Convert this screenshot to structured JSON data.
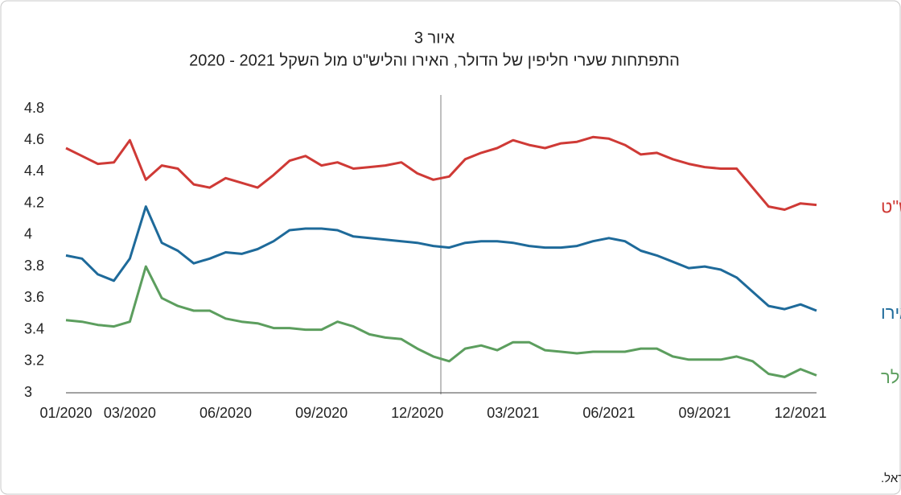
{
  "chart_data": {
    "type": "line",
    "title": "איור 3",
    "subtitle": "התפתחות שערי חליפין של הדולר, האירו והליש\"ט מול השקל  2021 - 2020",
    "source": "המקור: בנק ישראל.",
    "categories": [
      "01/2020",
      null,
      null,
      null,
      "03/2020",
      null,
      null,
      null,
      null,
      null,
      "06/2020",
      null,
      null,
      null,
      null,
      null,
      "09/2020",
      null,
      null,
      null,
      null,
      null,
      "12/2020",
      null,
      null,
      null,
      null,
      null,
      "03/2021",
      null,
      null,
      null,
      null,
      null,
      "06/2021",
      null,
      null,
      null,
      null,
      null,
      "09/2021",
      null,
      null,
      null,
      null,
      null,
      "12/2021",
      null
    ],
    "series": [
      {
        "name": "ליש\"ט",
        "color": "#cf3a36",
        "values": [
          4.55,
          4.5,
          4.45,
          4.46,
          4.6,
          4.35,
          4.44,
          4.42,
          4.32,
          4.3,
          4.36,
          4.33,
          4.3,
          4.38,
          4.47,
          4.5,
          4.44,
          4.46,
          4.42,
          4.43,
          4.44,
          4.46,
          4.39,
          4.35,
          4.37,
          4.48,
          4.52,
          4.55,
          4.6,
          4.57,
          4.55,
          4.58,
          4.59,
          4.62,
          4.61,
          4.57,
          4.51,
          4.52,
          4.48,
          4.45,
          4.43,
          4.42,
          4.42,
          4.3,
          4.18,
          4.16,
          4.2,
          4.19
        ]
      },
      {
        "name": "אירו",
        "color": "#1e6a9a",
        "values": [
          3.87,
          3.85,
          3.75,
          3.71,
          3.85,
          4.18,
          3.95,
          3.9,
          3.82,
          3.85,
          3.89,
          3.88,
          3.91,
          3.96,
          4.03,
          4.04,
          4.04,
          4.03,
          3.99,
          3.98,
          3.97,
          3.96,
          3.95,
          3.93,
          3.92,
          3.95,
          3.96,
          3.96,
          3.95,
          3.93,
          3.92,
          3.92,
          3.93,
          3.96,
          3.98,
          3.96,
          3.9,
          3.87,
          3.83,
          3.79,
          3.8,
          3.78,
          3.73,
          3.64,
          3.55,
          3.53,
          3.56,
          3.52
        ]
      },
      {
        "name": "דולר",
        "color": "#5c9e5e",
        "values": [
          3.46,
          3.45,
          3.43,
          3.42,
          3.45,
          3.8,
          3.6,
          3.55,
          3.52,
          3.52,
          3.47,
          3.45,
          3.44,
          3.41,
          3.41,
          3.4,
          3.4,
          3.45,
          3.42,
          3.37,
          3.35,
          3.34,
          3.28,
          3.23,
          3.2,
          3.28,
          3.3,
          3.27,
          3.32,
          3.32,
          3.27,
          3.26,
          3.25,
          3.26,
          3.26,
          3.26,
          3.28,
          3.28,
          3.23,
          3.21,
          3.21,
          3.21,
          3.23,
          3.2,
          3.12,
          3.1,
          3.15,
          3.11
        ]
      }
    ],
    "ylim": [
      3,
      4.8
    ],
    "yticks": [
      3,
      3.2,
      3.4,
      3.6,
      3.8,
      4,
      4.2,
      4.4,
      4.6,
      4.8
    ]
  }
}
